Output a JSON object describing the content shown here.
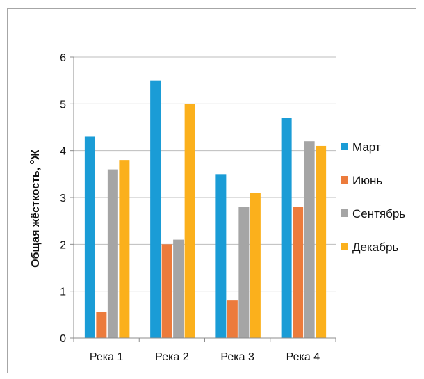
{
  "chart_data": {
    "type": "bar",
    "categories": [
      "Река 1",
      "Река 2",
      "Река 3",
      "Река 4"
    ],
    "series": [
      {
        "name": "Март",
        "color": "#1a9cd6",
        "values": [
          4.3,
          5.5,
          3.5,
          4.7
        ]
      },
      {
        "name": "Июнь",
        "color": "#ec7b3c",
        "values": [
          0.55,
          2.0,
          0.8,
          2.8
        ]
      },
      {
        "name": "Сентябрь",
        "color": "#a5a5a5",
        "values": [
          3.6,
          2.1,
          2.8,
          4.2
        ]
      },
      {
        "name": "Декабрь",
        "color": "#fbb01c",
        "values": [
          3.8,
          5.0,
          3.1,
          4.1
        ]
      }
    ],
    "ylabel": "Общая жёсткость, °Ж",
    "ylabel_main": "Общая жёсткость, ",
    "ylabel_sup": "о",
    "ylabel_unit": "Ж",
    "ylim": [
      0,
      6
    ],
    "yticks": [
      "0",
      "1",
      "2",
      "3",
      "4",
      "5",
      "6"
    ],
    "grid": true,
    "legend_position": "right"
  }
}
